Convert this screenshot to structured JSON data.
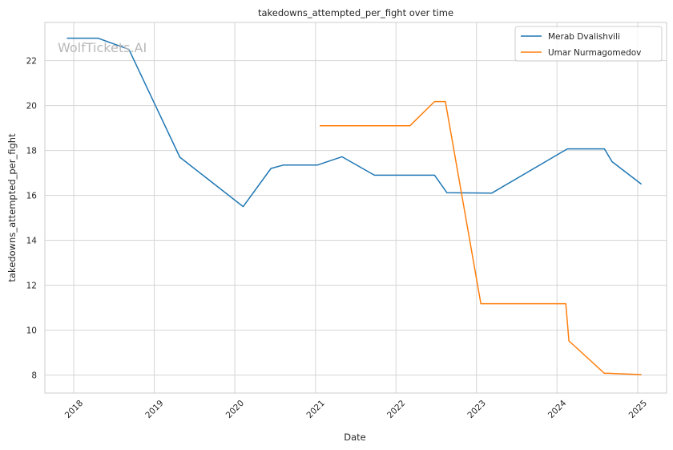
{
  "chart_data": {
    "type": "line",
    "title": "takedowns_attempted_per_fight over time",
    "xlabel": "Date",
    "ylabel": "takedowns_attempted_per_fight",
    "watermark": "WolfTickets.AI",
    "xlim": [
      "2017-08-23",
      "2025-05-12"
    ],
    "ylim": [
      7.2,
      23.7
    ],
    "x_ticks": [
      "2018",
      "2019",
      "2020",
      "2021",
      "2022",
      "2023",
      "2024",
      "2025"
    ],
    "x_tick_dates": [
      "2018-01-01",
      "2019-01-01",
      "2020-01-01",
      "2021-01-01",
      "2022-01-01",
      "2023-01-01",
      "2024-01-01",
      "2025-01-01"
    ],
    "y_ticks": [
      8,
      10,
      12,
      14,
      16,
      18,
      20,
      22
    ],
    "grid": true,
    "legend_position": "top-right",
    "series": [
      {
        "name": "Merab Dvalishvili",
        "color": "#1f77b4",
        "x": [
          "2017-12-01",
          "2018-04-21",
          "2018-09-08",
          "2019-04-27",
          "2020-02-08",
          "2020-06-13",
          "2020-08-08",
          "2021-01-09",
          "2021-05-01",
          "2021-09-25",
          "2022-06-25",
          "2022-08-20",
          "2023-03-11",
          "2024-02-17",
          "2024-08-03",
          "2024-09-07",
          "2025-01-18"
        ],
        "y": [
          23.0,
          23.0,
          22.5,
          17.7,
          15.5,
          17.2,
          17.35,
          17.35,
          17.72,
          16.9,
          16.9,
          16.12,
          16.1,
          18.07,
          18.07,
          17.5,
          16.5
        ]
      },
      {
        "name": "Umar Nurmagomedov",
        "color": "#ff7f0e",
        "x": [
          "2021-01-20",
          "2022-03-05",
          "2022-06-25",
          "2022-08-13",
          "2023-01-21",
          "2024-02-10",
          "2024-02-24",
          "2024-08-03",
          "2024-08-24",
          "2025-01-18"
        ],
        "y": [
          19.1,
          19.1,
          20.18,
          20.18,
          11.18,
          11.18,
          9.52,
          8.08,
          8.08,
          8.02
        ]
      }
    ]
  }
}
